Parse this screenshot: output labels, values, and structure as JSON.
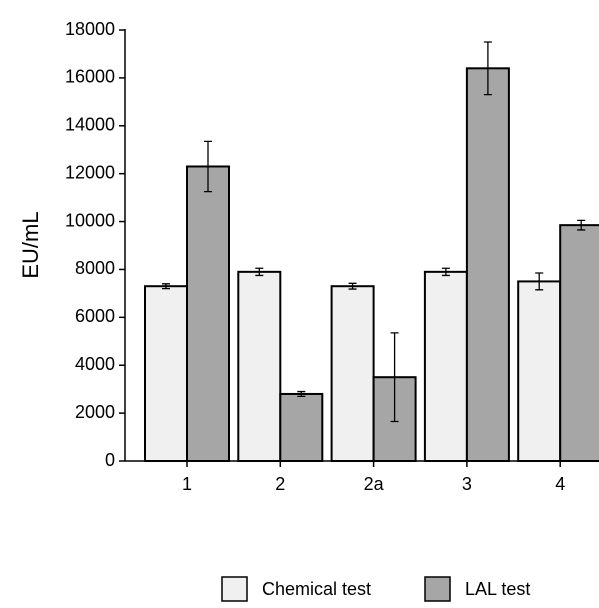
{
  "chart_data": {
    "type": "bar",
    "y_label": "EU/mL",
    "categories": [
      "1",
      "2",
      "2a",
      "3",
      "4"
    ],
    "series": [
      {
        "name": "Chemical test",
        "color": "#f0f0f0",
        "values": [
          7300,
          7900,
          7300,
          7900,
          7500
        ],
        "errors": [
          100,
          150,
          120,
          150,
          350
        ]
      },
      {
        "name": "LAL test",
        "color": "#a6a6a6",
        "values": [
          12300,
          2800,
          3500,
          16400,
          9850
        ],
        "errors": [
          1050,
          100,
          1850,
          1100,
          200
        ]
      }
    ],
    "ylim": [
      0,
      18000
    ],
    "yticks": [
      0,
      2000,
      4000,
      6000,
      8000,
      10000,
      12000,
      14000,
      16000,
      18000
    ],
    "legend": "bottom"
  }
}
